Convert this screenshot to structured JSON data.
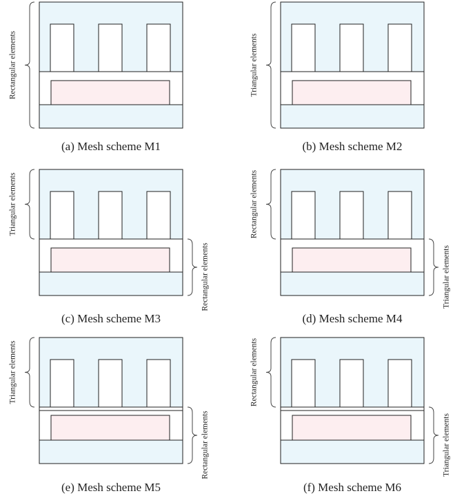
{
  "colors": {
    "region_fill": "#eaf6fb",
    "inner_fill": "#fdeef0",
    "slot_fill": "#ffffff",
    "stroke": "#1f1f1f",
    "text": "#222222"
  },
  "panels": [
    {
      "id": "a",
      "caption": "(a) Mesh scheme M1",
      "thin_gap": false,
      "left_label": "Rectangular elements",
      "left_span": "all",
      "right_label": ""
    },
    {
      "id": "b",
      "caption": "(b) Mesh scheme M2",
      "thin_gap": false,
      "left_label": "Triangular elements",
      "left_span": "all",
      "right_label": ""
    },
    {
      "id": "c",
      "caption": "(c) Mesh scheme M3",
      "thin_gap": false,
      "left_label": "Triangular elements",
      "left_span": "top",
      "right_label": "Rectangular elements"
    },
    {
      "id": "d",
      "caption": "(d) Mesh scheme M4",
      "thin_gap": false,
      "left_label": "Rectangular elements",
      "left_span": "top",
      "right_label": "Triangular elements"
    },
    {
      "id": "e",
      "caption": "(e) Mesh scheme M5",
      "thin_gap": true,
      "left_label": "Triangular elements",
      "left_span": "top",
      "right_label": "Rectangular elements"
    },
    {
      "id": "f",
      "caption": "(f) Mesh scheme M6",
      "thin_gap": true,
      "left_label": "Rectangular elements",
      "left_span": "top",
      "right_label": "Triangular elements"
    }
  ]
}
